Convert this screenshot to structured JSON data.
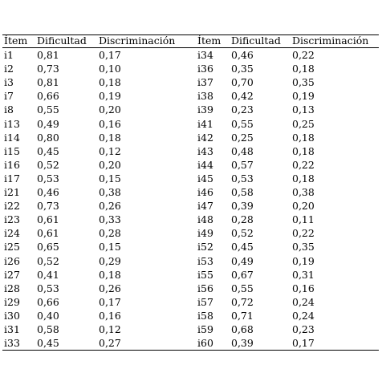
{
  "table": {
    "header": [
      "Ítem",
      "Dificultad",
      "Discriminación",
      "Ítem",
      "Dificultad",
      "Discriminación"
    ],
    "rows": [
      [
        "i1",
        "0,81",
        "0,17",
        "i34",
        "0,46",
        "0,22"
      ],
      [
        "i2",
        "0,73",
        "0,10",
        "i36",
        "0,35",
        "0,18"
      ],
      [
        "i3",
        "0,81",
        "0,18",
        "i37",
        "0,70",
        "0,35"
      ],
      [
        "i7",
        "0,66",
        "0,19",
        "i38",
        "0,42",
        "0,19"
      ],
      [
        "i8",
        "0,55",
        "0,20",
        "i39",
        "0,23",
        "0,13"
      ],
      [
        "i13",
        "0,49",
        "0,16",
        "i41",
        "0,55",
        "0,25"
      ],
      [
        "i14",
        "0,80",
        "0,18",
        "i42",
        "0,25",
        "0,18"
      ],
      [
        "i15",
        "0,45",
        "0,12",
        "i43",
        "0,48",
        "0,18"
      ],
      [
        "i16",
        "0,52",
        "0,20",
        "i44",
        "0,57",
        "0,22"
      ],
      [
        "i17",
        "0,53",
        "0,15",
        "i45",
        "0,53",
        "0,18"
      ],
      [
        "i21",
        "0,46",
        "0,38",
        "i46",
        "0,58",
        "0,38"
      ],
      [
        "i22",
        "0,73",
        "0,26",
        "i47",
        "0,39",
        "0,20"
      ],
      [
        "i23",
        "0,61",
        "0,33",
        "i48",
        "0,28",
        "0,11"
      ],
      [
        "i24",
        "0,61",
        "0,28",
        "i49",
        "0,52",
        "0,22"
      ],
      [
        "i25",
        "0,65",
        "0,15",
        "i52",
        "0,45",
        "0,35"
      ],
      [
        "i26",
        "0,52",
        "0,29",
        "i53",
        "0,49",
        "0,19"
      ],
      [
        "i27",
        "0,41",
        "0,18",
        "i55",
        "0,67",
        "0,31"
      ],
      [
        "i28",
        "0,53",
        "0,26",
        "i56",
        "0,55",
        "0,16"
      ],
      [
        "i29",
        "0,66",
        "0,17",
        "i57",
        "0,72",
        "0,24"
      ],
      [
        "i30",
        "0,40",
        "0,16",
        "i58",
        "0,71",
        "0,24"
      ],
      [
        "i31",
        "0,58",
        "0,12",
        "i59",
        "0,68",
        "0,23"
      ],
      [
        "i33",
        "0,45",
        "0,27",
        "i60",
        "0,39",
        "0,17"
      ]
    ]
  }
}
